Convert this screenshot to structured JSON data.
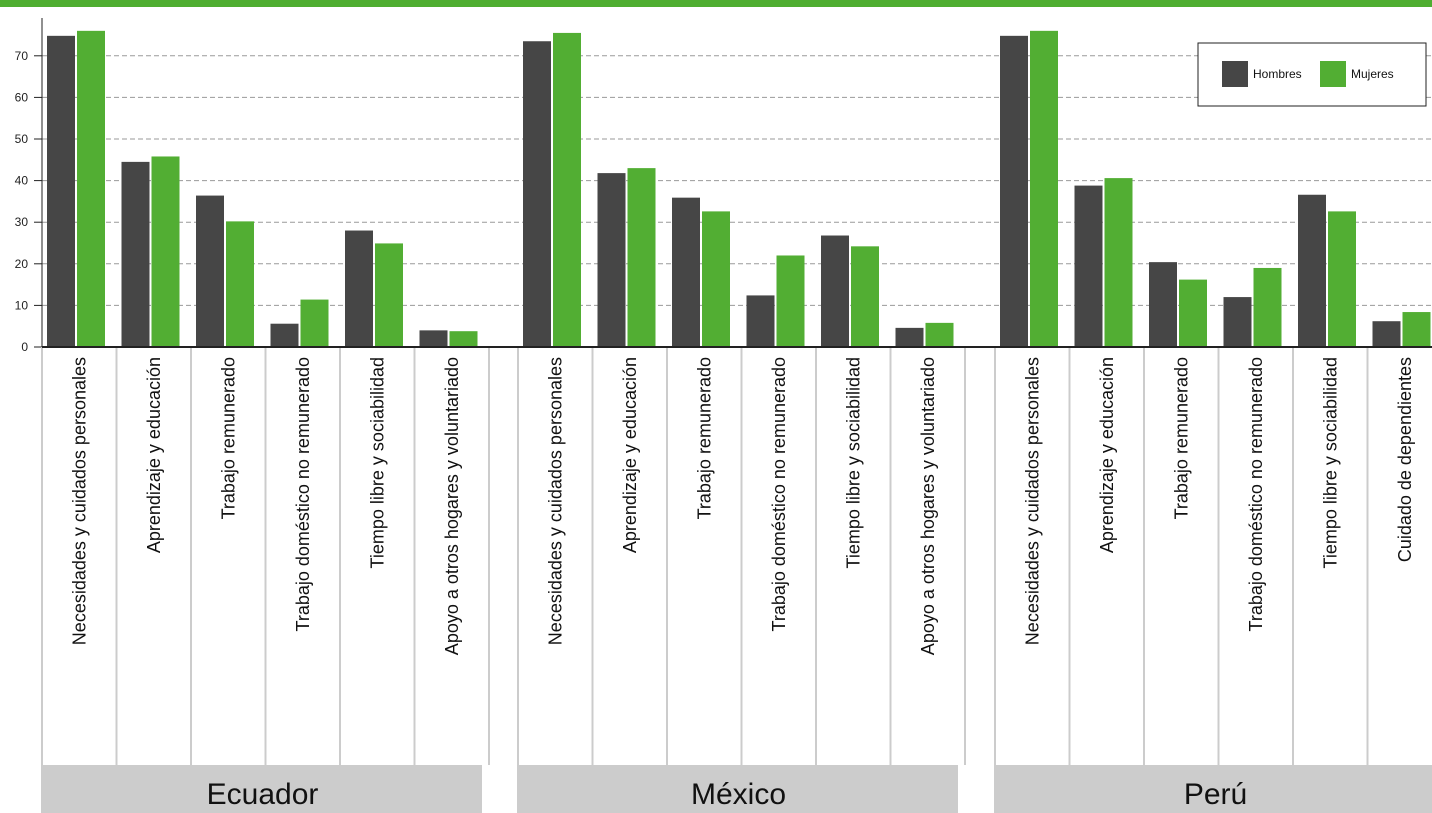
{
  "colors": {
    "accent_bar": "#4fae31",
    "hombres": "#464646",
    "mujeres": "#52ae33",
    "group_band": "#cccccc",
    "divider": "#cccccc",
    "grid": "#9a9a9a"
  },
  "chart_data": {
    "type": "bar",
    "title": "",
    "xlabel": "",
    "ylabel": "",
    "ylim": [
      0,
      76
    ],
    "yticks": [
      0,
      10,
      20,
      30,
      40,
      50,
      60,
      70
    ],
    "ytick_labels": [
      "0",
      "10",
      "20",
      "30",
      "40",
      "50",
      "60",
      "70"
    ],
    "grid": "dashed horizontal",
    "legend_position": "top-right",
    "series_names": [
      "Hombres",
      "Mujeres"
    ],
    "groups": [
      {
        "name": "Ecuador",
        "categories": [
          "Necesidades y cuidados personales",
          "Aprendizaje y educación",
          "Trabajo remunerado",
          "Trabajo doméstico no remunerado",
          "Tiempo libre y sociabilidad",
          "Apoyo a otros hogares y voluntariado"
        ],
        "series": [
          {
            "name": "Hombres",
            "values": [
              74.8,
              44.5,
              36.4,
              5.6,
              28.0,
              4.0
            ]
          },
          {
            "name": "Mujeres",
            "values": [
              76.0,
              45.8,
              30.2,
              11.4,
              24.9,
              3.8
            ]
          }
        ]
      },
      {
        "name": "México",
        "categories": [
          "Necesidades y cuidados personales",
          "Aprendizaje y educación",
          "Trabajo remunerado",
          "Trabajo doméstico no remunerado",
          "Tiempo libre y sociabilidad",
          "Apoyo a otros hogares y voluntariado"
        ],
        "series": [
          {
            "name": "Hombres",
            "values": [
              73.5,
              41.8,
              35.9,
              12.4,
              26.8,
              4.6
            ]
          },
          {
            "name": "Mujeres",
            "values": [
              75.5,
              43.0,
              32.6,
              22.0,
              24.2,
              5.8
            ]
          }
        ]
      },
      {
        "name": "Perú",
        "categories": [
          "Necesidades y cuidados personales",
          "Aprendizaje y educación",
          "Trabajo remunerado",
          "Trabajo doméstico no remunerado",
          "Tiempo libre y sociabilidad",
          "Cuidado de dependientes"
        ],
        "series": [
          {
            "name": "Hombres",
            "values": [
              74.8,
              38.8,
              20.4,
              12.0,
              36.6,
              6.2
            ]
          },
          {
            "name": "Mujeres",
            "values": [
              76.0,
              40.6,
              16.2,
              19.0,
              32.6,
              8.4
            ]
          }
        ]
      }
    ]
  }
}
